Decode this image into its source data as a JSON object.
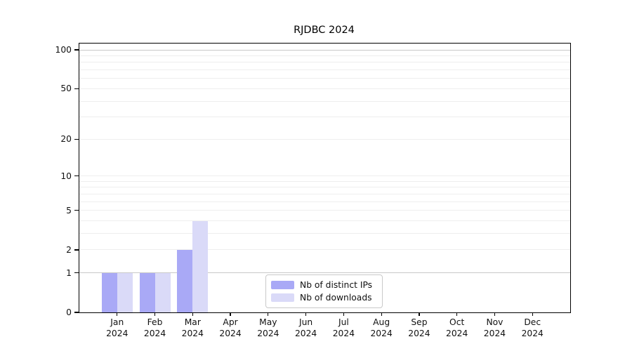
{
  "title": "RJDBC 2024",
  "chart_data": {
    "type": "bar",
    "title": "RJDBC 2024",
    "x_tick_labels": [
      [
        "Jan",
        "2024"
      ],
      [
        "Feb",
        "2024"
      ],
      [
        "Mar",
        "2024"
      ],
      [
        "Apr",
        "2024"
      ],
      [
        "May",
        "2024"
      ],
      [
        "Jun",
        "2024"
      ],
      [
        "Jul",
        "2024"
      ],
      [
        "Aug",
        "2024"
      ],
      [
        "Sep",
        "2024"
      ],
      [
        "Oct",
        "2024"
      ],
      [
        "Nov",
        "2024"
      ],
      [
        "Dec",
        "2024"
      ]
    ],
    "series": [
      {
        "name": "Nb of distinct IPs",
        "color": "#a9a9f6",
        "values": [
          1,
          1,
          2,
          0,
          0,
          0,
          0,
          0,
          0,
          0,
          0,
          0
        ]
      },
      {
        "name": "Nb of downloads",
        "color": "#dadaf8",
        "values": [
          1,
          1,
          4,
          0,
          0,
          0,
          0,
          0,
          0,
          0,
          0,
          0
        ]
      }
    ],
    "y_ticks": [
      0,
      1,
      2,
      5,
      10,
      20,
      50,
      100
    ],
    "grid_values": [
      1,
      2,
      3,
      4,
      5,
      6,
      7,
      8,
      9,
      10,
      20,
      30,
      40,
      50,
      60,
      70,
      80,
      90,
      100
    ],
    "emphasized_grid_values": [
      1,
      100
    ],
    "scale": "log1p",
    "ylim": [
      0,
      110
    ],
    "grid": "horizontal",
    "legend_position": "lower-center-inside"
  },
  "colors": {
    "axis": "#000000",
    "grid_minor": "#eeeeee",
    "grid_major": "#c9c9c9",
    "text": "#111111",
    "background": "#ffffff"
  }
}
